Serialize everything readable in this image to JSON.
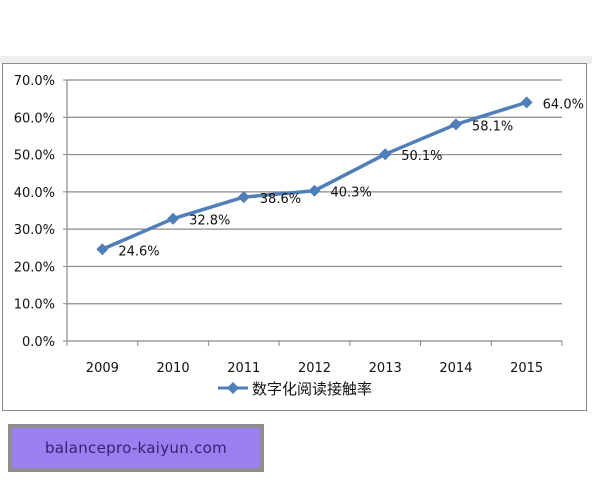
{
  "chart_data": {
    "type": "line",
    "title": "",
    "xlabel": "",
    "ylabel": "",
    "categories": [
      "2009",
      "2010",
      "2011",
      "2012",
      "2013",
      "2014",
      "2015"
    ],
    "series": [
      {
        "name": "数字化阅读接触率",
        "values": [
          24.6,
          32.8,
          38.6,
          40.3,
          50.1,
          58.1,
          64.0
        ],
        "labels": [
          "24.6%",
          "32.8%",
          "38.6%",
          "40.3%",
          "50.1%",
          "58.1%",
          "64.0%"
        ],
        "color": "#4f7fb8",
        "marker": "diamond"
      }
    ],
    "ylim": [
      0,
      70
    ],
    "yticks": [
      "0.0%",
      "10.0%",
      "20.0%",
      "30.0%",
      "40.0%",
      "50.0%",
      "60.0%",
      "70.0%"
    ],
    "grid": true,
    "legend_position": "bottom"
  },
  "legend": {
    "label": "数字化阅读接触率"
  },
  "watermark": {
    "text": "balancepro-kaiyun.com"
  }
}
